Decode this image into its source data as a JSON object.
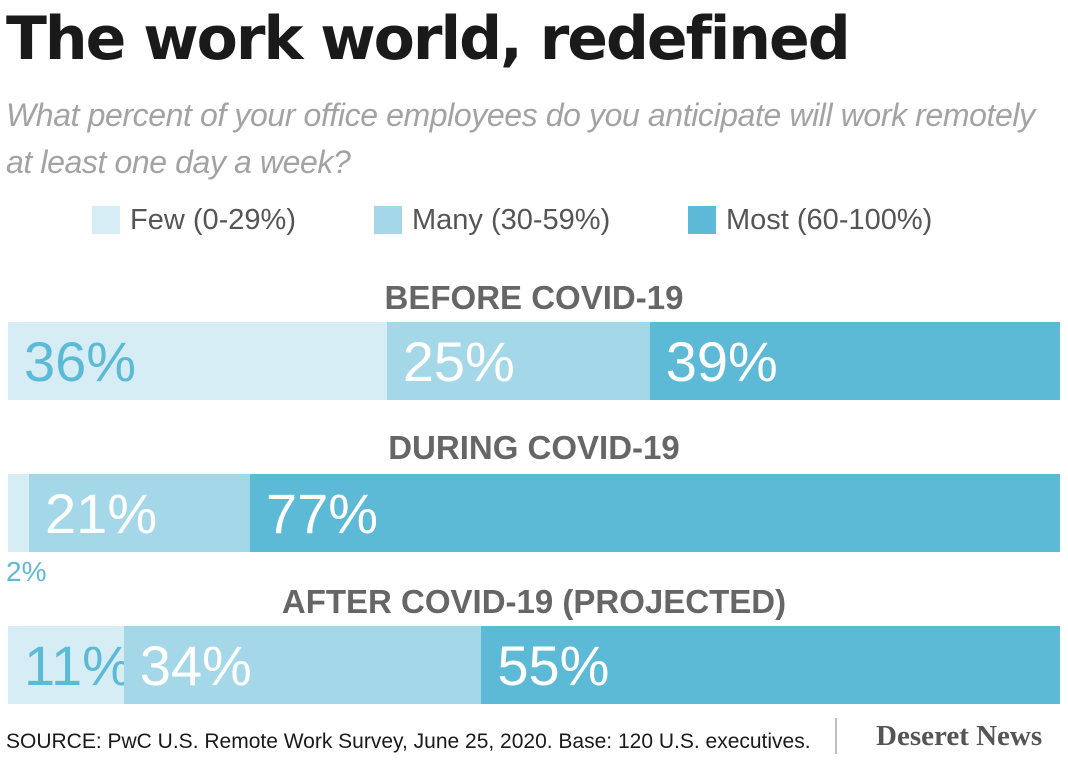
{
  "title": "The work world, redefined",
  "subtitle": "What percent of your office employees do you anticipate will work remotely at least one day a week?",
  "source": "SOURCE: PwC U.S. Remote Work Survey, June 25, 2020. Base: 120 U.S. executives.",
  "logo": "Deseret News",
  "colors": {
    "few": "#d6edf5",
    "many": "#a4d8e9",
    "most": "#5cbad6",
    "label_text": "#666666"
  },
  "legend": [
    {
      "label": "Few (0-29%)",
      "color": "#d6edf5"
    },
    {
      "label": "Many (30-59%)",
      "color": "#a4d8e9"
    },
    {
      "label": "Most (60-100%)",
      "color": "#5cbad6"
    }
  ],
  "chart_data": {
    "type": "bar",
    "orientation": "horizontal-stacked-100",
    "title": "The work world, redefined",
    "subtitle": "What percent of your office employees do you anticipate will work remotely at least one day a week?",
    "categories": [
      "BEFORE COVID-19",
      "DURING COVID-19",
      "AFTER COVID-19 (PROJECTED)"
    ],
    "series": [
      {
        "name": "Few (0-29%)",
        "values": [
          36,
          2,
          11
        ],
        "labels": [
          "36%",
          "2%",
          "11%"
        ]
      },
      {
        "name": "Many (30-59%)",
        "values": [
          25,
          21,
          34
        ],
        "labels": [
          "25%",
          "21%",
          "34%"
        ]
      },
      {
        "name": "Most (60-100%)",
        "values": [
          39,
          77,
          55
        ],
        "labels": [
          "39%",
          "77%",
          "55%"
        ]
      }
    ],
    "xlim": [
      0,
      100
    ],
    "legend": "top-center",
    "grid": false
  }
}
